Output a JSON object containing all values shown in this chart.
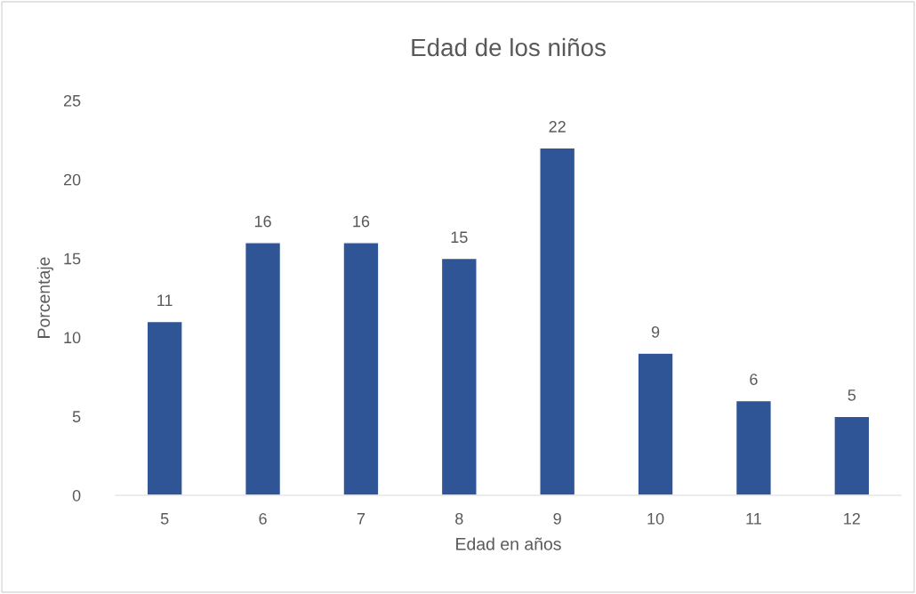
{
  "chart_data": {
    "type": "bar",
    "title": "Edad de los niños",
    "xlabel": "Edad en años",
    "ylabel": "Porcentaje",
    "categories": [
      "5",
      "6",
      "7",
      "8",
      "9",
      "10",
      "11",
      "12"
    ],
    "values": [
      11,
      16,
      16,
      15,
      22,
      9,
      6,
      5
    ],
    "color": "#2f5597",
    "ylim": [
      0,
      25
    ],
    "yticks": [
      0,
      5,
      10,
      15,
      20,
      25
    ],
    "grid": false,
    "data_labels": true
  }
}
